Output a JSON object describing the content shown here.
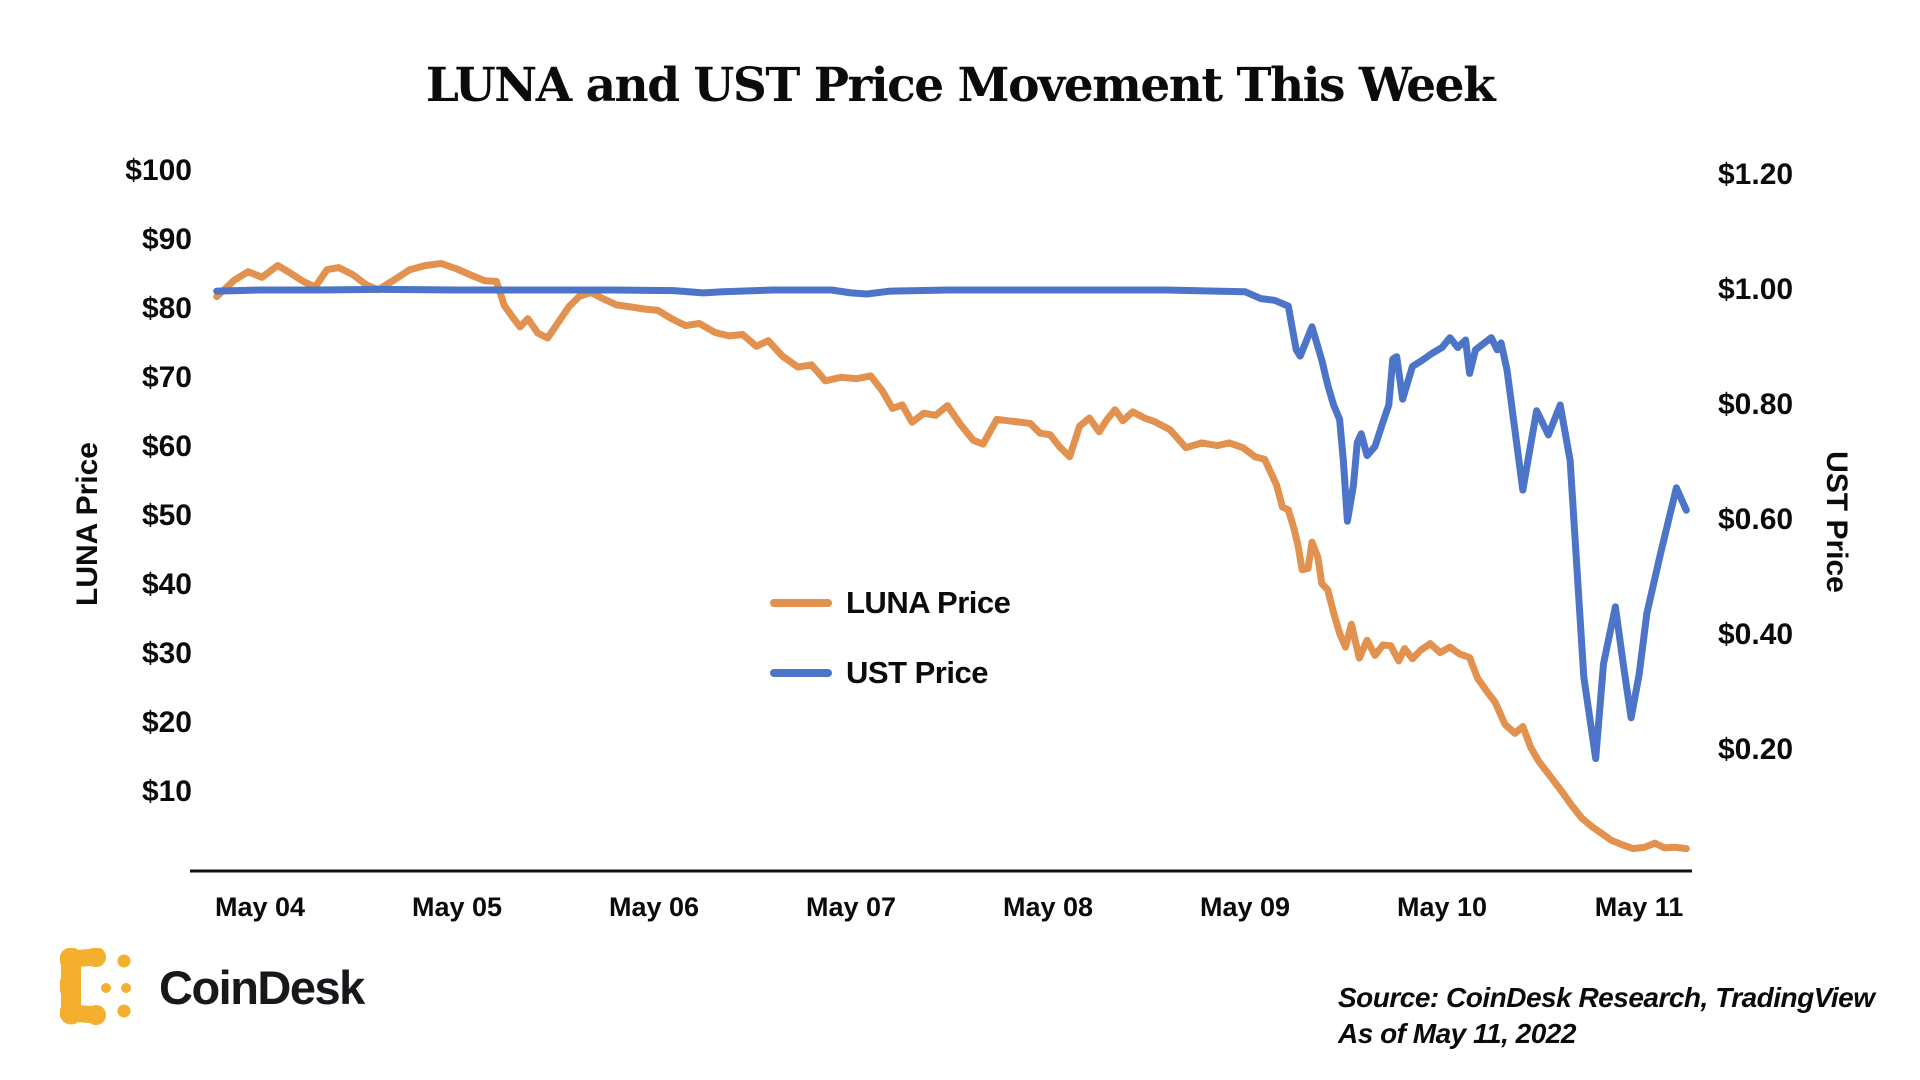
{
  "chart_data": {
    "type": "line",
    "title": "LUNA and UST Price Movement This Week",
    "x_axis": {
      "tick_labels": [
        "May 04",
        "May 05",
        "May 06",
        "May 07",
        "May 08",
        "May 09",
        "May 10",
        "May 11"
      ],
      "tick_days": [
        4,
        5,
        6,
        7,
        8,
        9,
        10,
        11
      ],
      "range_days": [
        3.78,
        11.24
      ]
    },
    "left_axis": {
      "label": "LUNA Price",
      "tick_labels": [
        "$10",
        "$20",
        "$30",
        "$40",
        "$50",
        "$60",
        "$70",
        "$80",
        "$90",
        "$100"
      ],
      "tick_values": [
        10,
        20,
        30,
        40,
        50,
        60,
        70,
        80,
        90,
        100
      ],
      "range": [
        10,
        100
      ]
    },
    "right_axis": {
      "label": "UST Price",
      "tick_labels": [
        "$0.20",
        "$0.40",
        "$0.60",
        "$0.80",
        "$1.00",
        "$1.20"
      ],
      "tick_values": [
        0.2,
        0.4,
        0.6,
        0.8,
        1.0,
        1.2
      ],
      "range": [
        0.2,
        1.2
      ]
    },
    "legend": [
      {
        "label": "LUNA Price",
        "color": "#E2914E"
      },
      {
        "label": "UST Price",
        "color": "#4C74C9"
      }
    ],
    "grid": false,
    "series": [
      {
        "name": "LUNA Price",
        "axis": "left",
        "color": "#E2914E",
        "points": [
          [
            3.78,
            81.8
          ],
          [
            3.87,
            84.2
          ],
          [
            3.94,
            85.4
          ],
          [
            4.01,
            84.6
          ],
          [
            4.09,
            86.3
          ],
          [
            4.16,
            85.1
          ],
          [
            4.22,
            84.0
          ],
          [
            4.28,
            83.2
          ],
          [
            4.34,
            85.7
          ],
          [
            4.4,
            86.0
          ],
          [
            4.47,
            85.0
          ],
          [
            4.54,
            83.5
          ],
          [
            4.6,
            82.8
          ],
          [
            4.68,
            84.2
          ],
          [
            4.76,
            85.7
          ],
          [
            4.84,
            86.3
          ],
          [
            4.92,
            86.6
          ],
          [
            5.0,
            85.8
          ],
          [
            5.08,
            84.8
          ],
          [
            5.14,
            84.1
          ],
          [
            5.2,
            84.0
          ],
          [
            5.24,
            80.5
          ],
          [
            5.28,
            78.9
          ],
          [
            5.32,
            77.4
          ],
          [
            5.36,
            78.6
          ],
          [
            5.41,
            76.5
          ],
          [
            5.46,
            75.8
          ],
          [
            5.52,
            78.3
          ],
          [
            5.57,
            80.4
          ],
          [
            5.62,
            81.8
          ],
          [
            5.68,
            82.4
          ],
          [
            5.74,
            81.5
          ],
          [
            5.81,
            80.6
          ],
          [
            5.88,
            80.3
          ],
          [
            5.95,
            80.0
          ],
          [
            6.02,
            79.8
          ],
          [
            6.09,
            78.6
          ],
          [
            6.16,
            77.6
          ],
          [
            6.23,
            77.9
          ],
          [
            6.31,
            76.6
          ],
          [
            6.38,
            76.1
          ],
          [
            6.45,
            76.3
          ],
          [
            6.52,
            74.6
          ],
          [
            6.58,
            75.4
          ],
          [
            6.65,
            73.2
          ],
          [
            6.73,
            71.6
          ],
          [
            6.8,
            71.9
          ],
          [
            6.87,
            69.6
          ],
          [
            6.95,
            70.1
          ],
          [
            7.03,
            69.9
          ],
          [
            7.1,
            70.3
          ],
          [
            7.16,
            68.1
          ],
          [
            7.21,
            65.6
          ],
          [
            7.26,
            66.1
          ],
          [
            7.31,
            63.6
          ],
          [
            7.37,
            64.9
          ],
          [
            7.43,
            64.6
          ],
          [
            7.49,
            66.0
          ],
          [
            7.55,
            63.5
          ],
          [
            7.62,
            61.0
          ],
          [
            7.67,
            60.4
          ],
          [
            7.74,
            64.0
          ],
          [
            7.8,
            63.8
          ],
          [
            7.86,
            63.6
          ],
          [
            7.91,
            63.4
          ],
          [
            7.96,
            62.0
          ],
          [
            8.01,
            61.8
          ],
          [
            8.06,
            60.0
          ],
          [
            8.11,
            58.6
          ],
          [
            8.16,
            63.0
          ],
          [
            8.21,
            64.2
          ],
          [
            8.26,
            62.2
          ],
          [
            8.3,
            64.0
          ],
          [
            8.34,
            65.4
          ],
          [
            8.38,
            63.8
          ],
          [
            8.43,
            65.1
          ],
          [
            8.49,
            64.2
          ],
          [
            8.54,
            63.7
          ],
          [
            8.62,
            62.5
          ],
          [
            8.7,
            59.9
          ],
          [
            8.78,
            60.6
          ],
          [
            8.86,
            60.2
          ],
          [
            8.92,
            60.6
          ],
          [
            8.99,
            59.9
          ],
          [
            9.05,
            58.6
          ],
          [
            9.1,
            58.2
          ],
          [
            9.16,
            54.5
          ],
          [
            9.19,
            51.3
          ],
          [
            9.22,
            50.9
          ],
          [
            9.25,
            48.0
          ],
          [
            9.27,
            45.6
          ],
          [
            9.29,
            42.2
          ],
          [
            9.32,
            42.4
          ],
          [
            9.34,
            46.2
          ],
          [
            9.37,
            44.0
          ],
          [
            9.39,
            40.2
          ],
          [
            9.42,
            39.3
          ],
          [
            9.45,
            36.0
          ],
          [
            9.48,
            33.0
          ],
          [
            9.51,
            31.0
          ],
          [
            9.54,
            34.3
          ],
          [
            9.58,
            29.4
          ],
          [
            9.62,
            32.0
          ],
          [
            9.66,
            29.8
          ],
          [
            9.7,
            31.3
          ],
          [
            9.74,
            31.2
          ],
          [
            9.78,
            29.0
          ],
          [
            9.81,
            30.8
          ],
          [
            9.85,
            29.3
          ],
          [
            9.89,
            30.5
          ],
          [
            9.94,
            31.5
          ],
          [
            9.99,
            30.2
          ],
          [
            10.04,
            31.0
          ],
          [
            10.09,
            30.0
          ],
          [
            10.14,
            29.5
          ],
          [
            10.18,
            26.5
          ],
          [
            10.23,
            24.5
          ],
          [
            10.27,
            23.0
          ],
          [
            10.32,
            19.8
          ],
          [
            10.37,
            18.5
          ],
          [
            10.41,
            19.5
          ],
          [
            10.45,
            16.5
          ],
          [
            10.49,
            14.5
          ],
          [
            10.53,
            13.0
          ],
          [
            10.57,
            11.5
          ],
          [
            10.61,
            10.0
          ],
          [
            10.66,
            8.0
          ],
          [
            10.71,
            6.2
          ],
          [
            10.76,
            5.0
          ],
          [
            10.81,
            4.0
          ],
          [
            10.86,
            3.0
          ],
          [
            10.91,
            2.4
          ],
          [
            10.97,
            1.8
          ],
          [
            11.03,
            2.0
          ],
          [
            11.08,
            2.6
          ],
          [
            11.13,
            1.9
          ],
          [
            11.18,
            2.0
          ],
          [
            11.24,
            1.8
          ]
        ]
      },
      {
        "name": "UST Price",
        "axis": "right",
        "color": "#4C74C9",
        "points": [
          [
            3.78,
            0.998
          ],
          [
            4.0,
            1.0
          ],
          [
            4.3,
            1.0
          ],
          [
            4.6,
            1.001
          ],
          [
            5.0,
            1.0
          ],
          [
            5.4,
            1.0
          ],
          [
            5.8,
            1.0
          ],
          [
            6.1,
            0.999
          ],
          [
            6.25,
            0.995
          ],
          [
            6.35,
            0.997
          ],
          [
            6.6,
            1.0
          ],
          [
            6.9,
            1.0
          ],
          [
            7.0,
            0.995
          ],
          [
            7.08,
            0.993
          ],
          [
            7.2,
            0.998
          ],
          [
            7.5,
            1.0
          ],
          [
            7.9,
            1.0
          ],
          [
            8.3,
            1.0
          ],
          [
            8.6,
            1.0
          ],
          [
            8.85,
            0.998
          ],
          [
            9.0,
            0.997
          ],
          [
            9.08,
            0.985
          ],
          [
            9.15,
            0.982
          ],
          [
            9.22,
            0.972
          ],
          [
            9.26,
            0.896
          ],
          [
            9.28,
            0.885
          ],
          [
            9.34,
            0.936
          ],
          [
            9.39,
            0.878
          ],
          [
            9.42,
            0.835
          ],
          [
            9.45,
            0.8
          ],
          [
            9.48,
            0.775
          ],
          [
            9.5,
            0.7
          ],
          [
            9.52,
            0.598
          ],
          [
            9.55,
            0.66
          ],
          [
            9.57,
            0.735
          ],
          [
            9.59,
            0.75
          ],
          [
            9.62,
            0.712
          ],
          [
            9.66,
            0.728
          ],
          [
            9.7,
            0.77
          ],
          [
            9.73,
            0.8
          ],
          [
            9.75,
            0.88
          ],
          [
            9.77,
            0.884
          ],
          [
            9.8,
            0.81
          ],
          [
            9.85,
            0.867
          ],
          [
            9.9,
            0.878
          ],
          [
            9.95,
            0.89
          ],
          [
            10.0,
            0.9
          ],
          [
            10.04,
            0.917
          ],
          [
            10.08,
            0.9
          ],
          [
            10.12,
            0.913
          ],
          [
            10.14,
            0.855
          ],
          [
            10.17,
            0.896
          ],
          [
            10.25,
            0.917
          ],
          [
            10.28,
            0.896
          ],
          [
            10.3,
            0.908
          ],
          [
            10.33,
            0.861
          ],
          [
            10.41,
            0.652
          ],
          [
            10.48,
            0.79
          ],
          [
            10.54,
            0.748
          ],
          [
            10.6,
            0.8
          ],
          [
            10.65,
            0.704
          ],
          [
            10.72,
            0.327
          ],
          [
            10.78,
            0.185
          ],
          [
            10.82,
            0.35
          ],
          [
            10.88,
            0.449
          ],
          [
            10.92,
            0.35
          ],
          [
            10.96,
            0.256
          ],
          [
            11.0,
            0.33
          ],
          [
            11.04,
            0.438
          ],
          [
            11.11,
            0.543
          ],
          [
            11.19,
            0.656
          ],
          [
            11.24,
            0.617
          ]
        ]
      }
    ]
  },
  "footer": {
    "brand_name": "CoinDesk",
    "source_line1": "Source: CoinDesk Research, TradingView",
    "source_line2": "As of May 11, 2022"
  },
  "colors": {
    "luna_line": "#E2914E",
    "ust_line": "#4C74C9",
    "axis_line": "#111111",
    "logo_gold": "#F5AF2E",
    "text": "#0b0b0d"
  }
}
